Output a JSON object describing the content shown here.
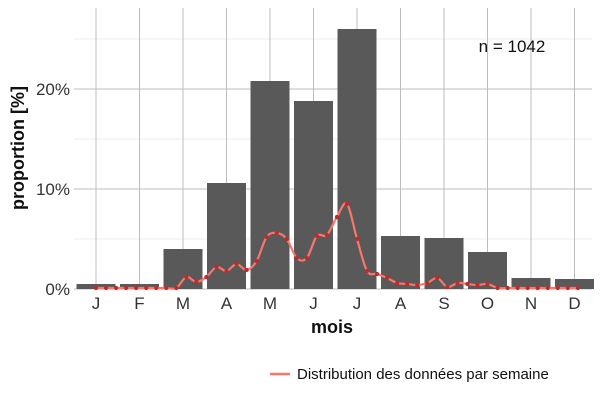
{
  "chart_data": {
    "type": "bar",
    "categories": [
      "J",
      "F",
      "M",
      "A",
      "M",
      "J",
      "J",
      "A",
      "S",
      "O",
      "N",
      "D"
    ],
    "values": [
      0.5,
      0.5,
      4.0,
      10.6,
      20.8,
      18.8,
      26.0,
      5.3,
      5.1,
      3.7,
      1.1,
      1.0
    ],
    "xlabel": "mois",
    "ylabel": "proportion [%]",
    "yticks": [
      0,
      10,
      20
    ],
    "ytick_labels": [
      "0%",
      "10%",
      "20%"
    ],
    "ylim": [
      0,
      28
    ],
    "grid": true,
    "annotation": "n = 1042",
    "bar_color": "#595959",
    "line_series": {
      "name": "Distribution des données par semaine",
      "color": "#f8766d",
      "point_color": "#c62828",
      "x_month_pos": [
        0.0,
        0.231,
        0.462,
        0.692,
        0.923,
        1.154,
        1.385,
        1.615,
        1.846,
        2.077,
        2.308,
        2.538,
        2.769,
        3.0,
        3.231,
        3.462,
        3.692,
        3.923,
        4.154,
        4.385,
        4.615,
        4.846,
        5.077,
        5.308,
        5.538,
        5.769,
        6.0,
        6.231,
        6.462,
        6.692,
        6.923,
        7.154,
        7.385,
        7.615,
        7.846,
        8.077,
        8.308,
        8.538,
        8.769,
        9.0,
        9.231,
        9.462,
        9.692,
        9.923,
        10.154,
        10.385,
        10.615,
        10.846,
        11.077
      ],
      "values": [
        0.1,
        0.1,
        0.1,
        0.1,
        0.1,
        0.1,
        0.1,
        0.1,
        0.1,
        1.2,
        0.7,
        1.2,
        2.2,
        1.8,
        2.5,
        1.9,
        2.8,
        5.2,
        5.6,
        5.0,
        3.1,
        3.1,
        5.3,
        5.4,
        7.2,
        8.5,
        5.0,
        1.8,
        1.5,
        1.1,
        0.6,
        0.5,
        0.4,
        0.6,
        1.1,
        0.2,
        0.6,
        0.5,
        0.4,
        0.5,
        0.1,
        0.1,
        0.1,
        0.1,
        0.1,
        0.1,
        0.1,
        0.1,
        0.1
      ]
    },
    "legend_position": "bottom-right"
  }
}
